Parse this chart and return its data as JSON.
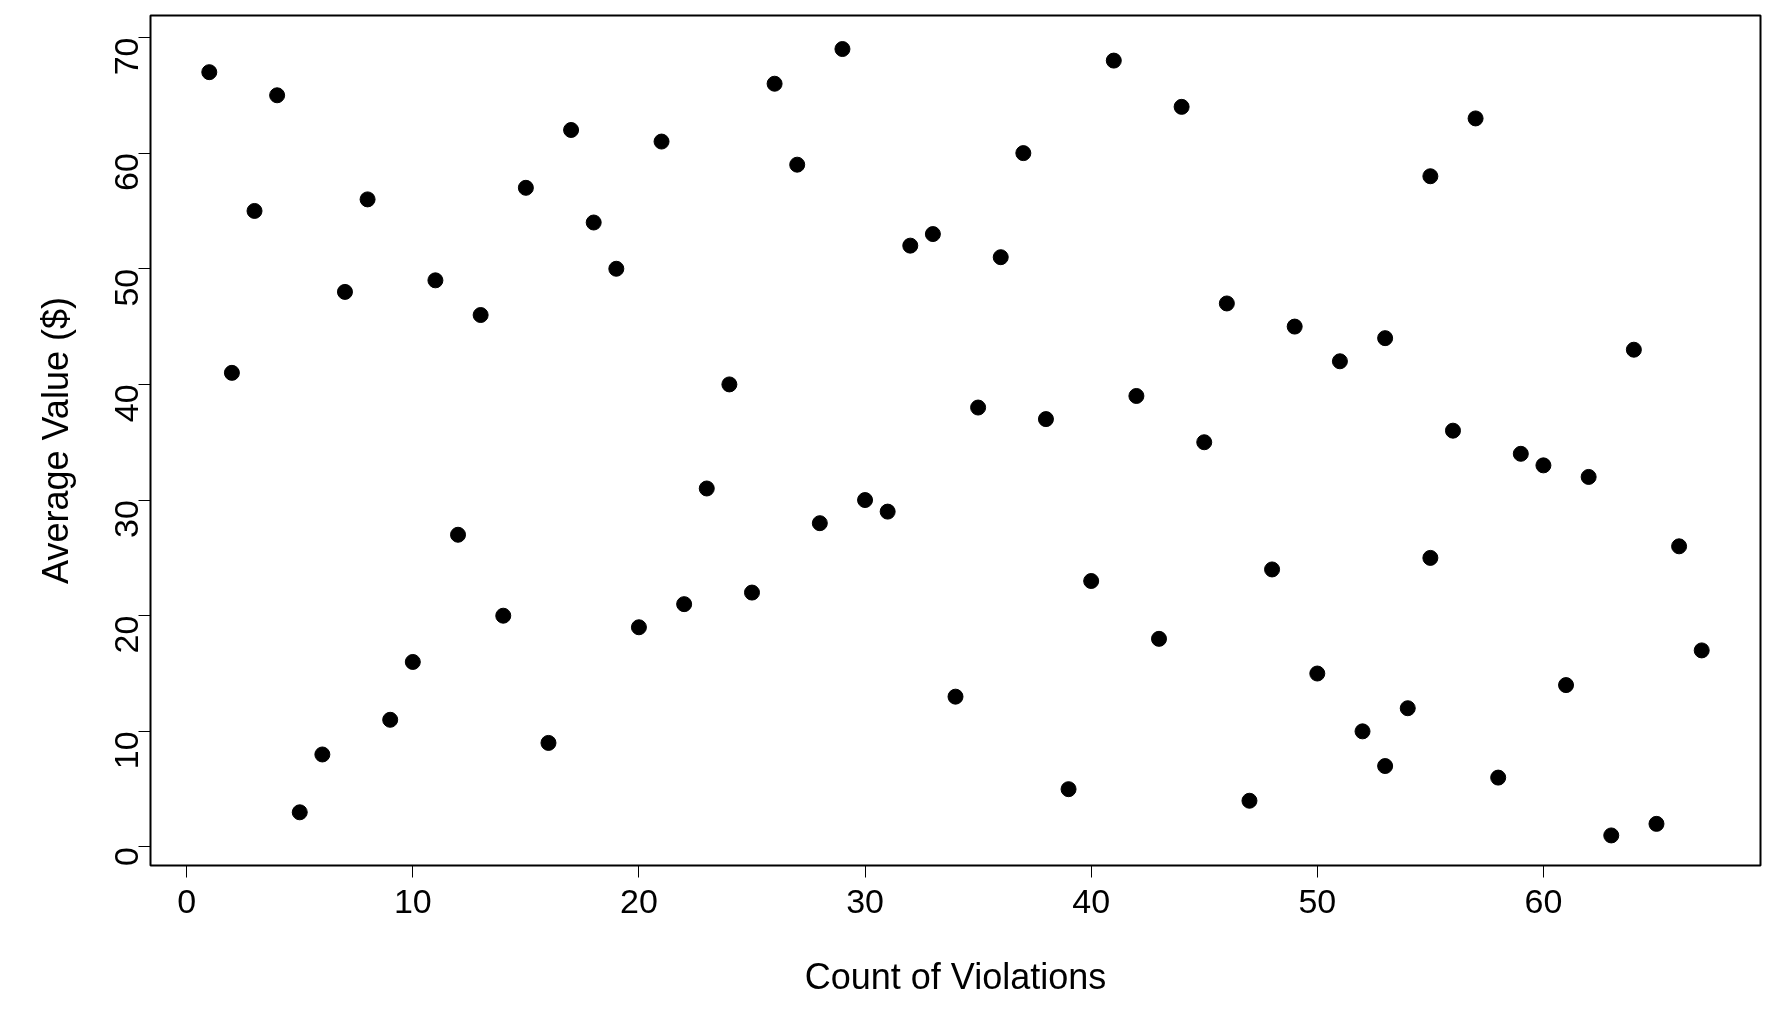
{
  "chart_data": {
    "type": "scatter",
    "xlabel": "Count of Violations",
    "ylabel": "Average Value ($)",
    "x": [
      1,
      2,
      3,
      4,
      5,
      6,
      7,
      8,
      9,
      10,
      11,
      12,
      13,
      14,
      15,
      16,
      17,
      18,
      19,
      20,
      21,
      22,
      23,
      24,
      25,
      26,
      27,
      28,
      29,
      30,
      31,
      32,
      33,
      34,
      35,
      36,
      37,
      38,
      39,
      40,
      41,
      42,
      43,
      44,
      45,
      46,
      47,
      48,
      49,
      50,
      51,
      52,
      53,
      53,
      54,
      55,
      55,
      56,
      57,
      58,
      59,
      60,
      61,
      62,
      63,
      64,
      65,
      66,
      67
    ],
    "series": [
      {
        "color": "#000000",
        "values": [
          67,
          41,
          55,
          65,
          3,
          8,
          48,
          56,
          11,
          16,
          49,
          27,
          46,
          20,
          57,
          9,
          62,
          54,
          50,
          19,
          61,
          21,
          31,
          40,
          22,
          66,
          59,
          28,
          69,
          30,
          29,
          52,
          53,
          13,
          38,
          51,
          60,
          37,
          5,
          23,
          68,
          39,
          18,
          64,
          35,
          47,
          4,
          24,
          45,
          15,
          42,
          10,
          44,
          7,
          12,
          58,
          25,
          36,
          63,
          6,
          34,
          33,
          14,
          32,
          1,
          43,
          2,
          26,
          17
        ]
      }
    ],
    "xlim": [
      -1.6,
      69.6
    ],
    "ylim": [
      -1.6,
      71.9
    ],
    "xticks": [
      0,
      10,
      20,
      30,
      40,
      50,
      60
    ],
    "yticks": [
      0,
      10,
      20,
      30,
      40,
      50,
      60,
      70
    ],
    "marker": "circle",
    "grid": false
  }
}
